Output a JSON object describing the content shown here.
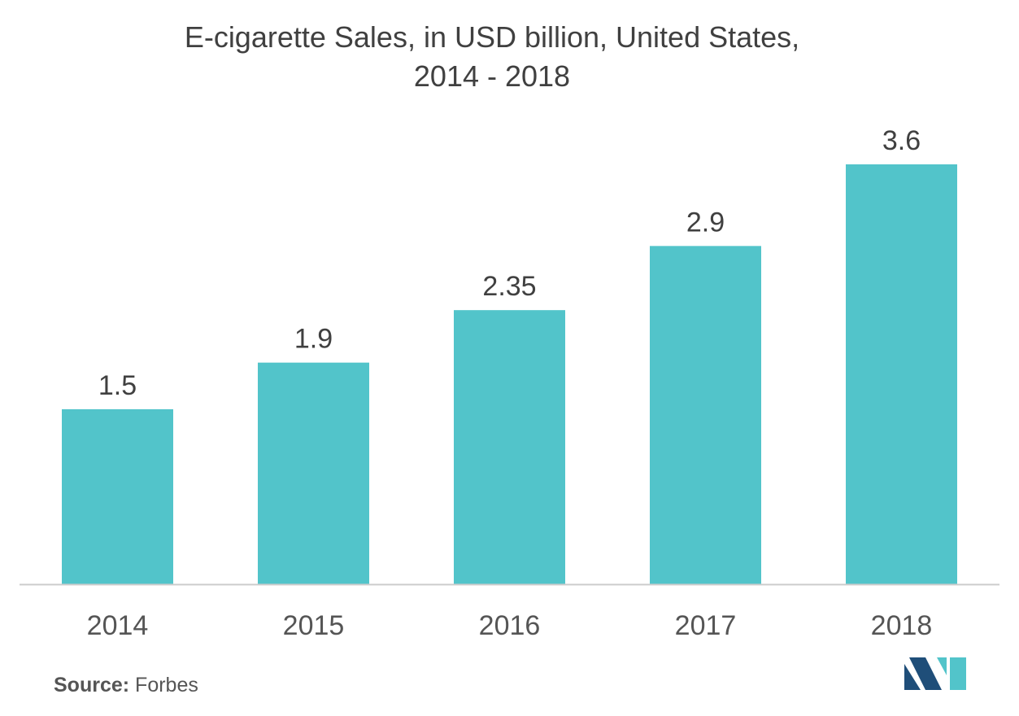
{
  "chart_data": {
    "type": "bar",
    "title_line1": "E-cigarette Sales, in USD billion, United States,",
    "title_line2": "2014 - 2018",
    "categories": [
      "2014",
      "2015",
      "2016",
      "2017",
      "2018"
    ],
    "values": [
      1.5,
      1.9,
      2.35,
      2.9,
      3.6
    ],
    "value_labels": [
      "1.5",
      "1.9",
      "2.35",
      "2.9",
      "3.6"
    ],
    "xlabel": "",
    "ylabel": "",
    "ylim": [
      0,
      3.6
    ],
    "grid": false,
    "legend": "none",
    "bar_color": "#52C4CA",
    "axis_color": "#CCCCCC"
  },
  "source": {
    "label": "Source:",
    "value": "Forbes"
  },
  "logo": {
    "icon": "mordor-logo-icon",
    "color_dark": "#1F4E79",
    "color_light": "#52C4CA"
  }
}
